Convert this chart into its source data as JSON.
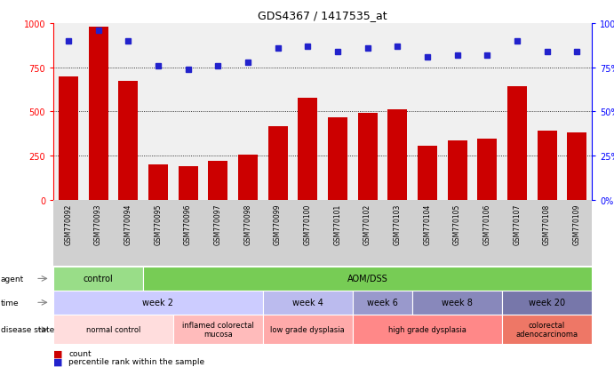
{
  "title": "GDS4367 / 1417535_at",
  "samples": [
    "GSM770092",
    "GSM770093",
    "GSM770094",
    "GSM770095",
    "GSM770096",
    "GSM770097",
    "GSM770098",
    "GSM770099",
    "GSM770100",
    "GSM770101",
    "GSM770102",
    "GSM770103",
    "GSM770104",
    "GSM770105",
    "GSM770106",
    "GSM770107",
    "GSM770108",
    "GSM770109"
  ],
  "counts": [
    700,
    980,
    670,
    200,
    190,
    220,
    255,
    415,
    575,
    465,
    490,
    510,
    305,
    335,
    345,
    640,
    390,
    380
  ],
  "percentiles": [
    90,
    96,
    90,
    76,
    74,
    76,
    78,
    86,
    87,
    84,
    86,
    87,
    81,
    82,
    82,
    90,
    84,
    84
  ],
  "bar_color": "#cc0000",
  "dot_color": "#2222cc",
  "ylim_left": [
    0,
    1000
  ],
  "ylim_right": [
    0,
    100
  ],
  "yticks_left": [
    0,
    250,
    500,
    750,
    1000
  ],
  "yticks_right": [
    0,
    25,
    50,
    75,
    100
  ],
  "grid_values": [
    250,
    500,
    750
  ],
  "agent_segments": [
    {
      "text": "control",
      "start": 0,
      "end": 3,
      "color": "#99dd88"
    },
    {
      "text": "AOM/DSS",
      "start": 3,
      "end": 18,
      "color": "#77cc55"
    }
  ],
  "time_segments": [
    {
      "text": "week 2",
      "start": 0,
      "end": 7,
      "color": "#ccccff"
    },
    {
      "text": "week 4",
      "start": 7,
      "end": 10,
      "color": "#bbbbee"
    },
    {
      "text": "week 6",
      "start": 10,
      "end": 12,
      "color": "#9999cc"
    },
    {
      "text": "week 8",
      "start": 12,
      "end": 15,
      "color": "#8888bb"
    },
    {
      "text": "week 20",
      "start": 15,
      "end": 18,
      "color": "#7777aa"
    }
  ],
  "disease_segments": [
    {
      "text": "normal control",
      "start": 0,
      "end": 4,
      "color": "#ffdddd"
    },
    {
      "text": "inflamed colorectal\nmucosa",
      "start": 4,
      "end": 7,
      "color": "#ffbbbb"
    },
    {
      "text": "low grade dysplasia",
      "start": 7,
      "end": 10,
      "color": "#ffaaaa"
    },
    {
      "text": "high grade dysplasia",
      "start": 10,
      "end": 15,
      "color": "#ff8888"
    },
    {
      "text": "colorectal\nadenocarcinoma",
      "start": 15,
      "end": 18,
      "color": "#ee7766"
    }
  ],
  "row_labels": [
    "agent",
    "time",
    "disease state"
  ],
  "fig_width": 6.91,
  "fig_height": 4.14,
  "chart_bg": "#f0f0f0",
  "label_bg": "#d0d0d0"
}
